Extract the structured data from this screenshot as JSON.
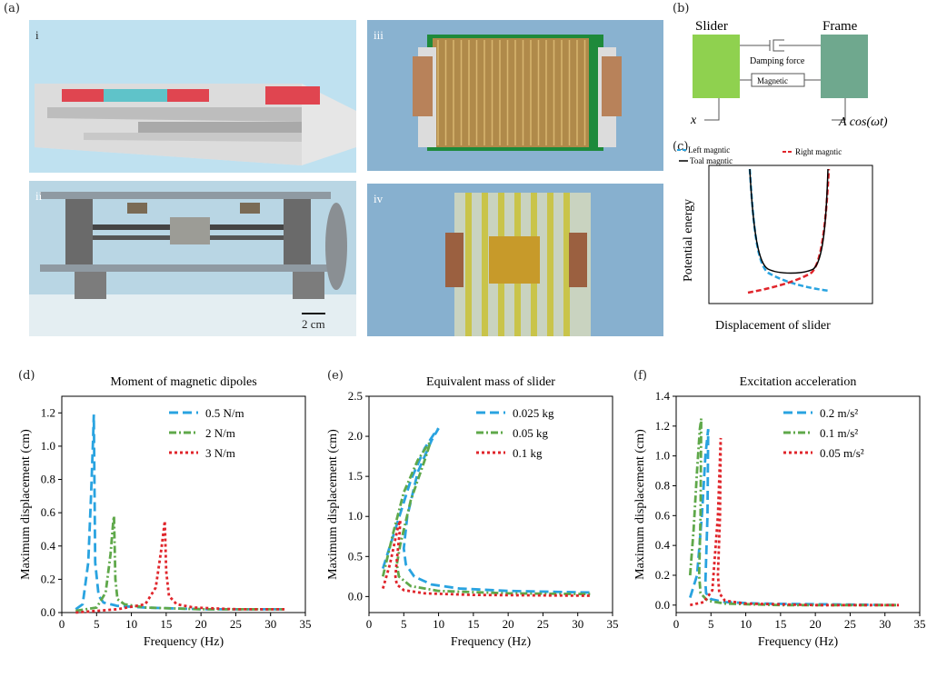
{
  "labels": {
    "a": "(a)",
    "b": "(b)",
    "c": "(c)",
    "d": "(d)",
    "e": "(e)",
    "f": "(f)"
  },
  "panel_a": {
    "sub": [
      "i",
      "ii",
      "iii",
      "iv"
    ],
    "scale_bar": "2 cm"
  },
  "panel_b": {
    "slider": "Slider",
    "frame": "Frame",
    "damping": "Damping force",
    "magnetic": "Magnetic",
    "x": "x",
    "drive": "A cos(ωt)"
  },
  "panel_c": {
    "legend": [
      "Left magntic",
      "Right magntic",
      "Toal magntic"
    ],
    "ylabel": "Potential energy",
    "xlabel": "Displacement of slider"
  },
  "chart_data": [
    {
      "type": "line",
      "title": "Moment of magnetic dipoles",
      "xlabel": "Frequency (Hz)",
      "ylabel": "Maximum displacement (cm)",
      "xlim": [
        0,
        35
      ],
      "ylim": [
        0,
        1.3
      ],
      "xticks": [
        "0",
        "5",
        "10",
        "15",
        "20",
        "25",
        "30",
        "35"
      ],
      "yticks": [
        "0.0",
        "0.2",
        "0.4",
        "0.6",
        "0.8",
        "1.0",
        "1.2"
      ],
      "series": [
        {
          "name": "0.5 N/m",
          "color": "#29a3e0",
          "dash": "dash",
          "x": [
            2,
            3,
            3.8,
            4.2,
            4.5,
            4.6,
            4.8,
            5.3,
            6,
            8,
            12,
            20,
            32
          ],
          "y": [
            0.02,
            0.05,
            0.3,
            0.7,
            1.05,
            1.19,
            0.3,
            0.1,
            0.06,
            0.04,
            0.03,
            0.02,
            0.02
          ]
        },
        {
          "name": "2 N/m",
          "color": "#5fa84a",
          "dash": "dashdot",
          "x": [
            2,
            5,
            6.3,
            7,
            7.4,
            7.5,
            7.7,
            8,
            9,
            12,
            20,
            32
          ],
          "y": [
            0.01,
            0.03,
            0.12,
            0.35,
            0.55,
            0.58,
            0.2,
            0.08,
            0.05,
            0.03,
            0.02,
            0.02
          ]
        },
        {
          "name": "3 N/m",
          "color": "#e0252b",
          "dash": "dot",
          "x": [
            2,
            8,
            12,
            13.5,
            14.3,
            14.8,
            15,
            15.4,
            16.5,
            19,
            25,
            32
          ],
          "y": [
            0.0,
            0.02,
            0.05,
            0.15,
            0.38,
            0.55,
            0.25,
            0.1,
            0.05,
            0.03,
            0.02,
            0.02
          ]
        }
      ]
    },
    {
      "type": "line",
      "title": "Equivalent mass of slider",
      "xlabel": "Frequency (Hz)",
      "ylabel": "Maximum displacement (cm)",
      "xlim": [
        0,
        35
      ],
      "ylim": [
        -0.2,
        2.5
      ],
      "xticks": [
        "0",
        "5",
        "10",
        "15",
        "20",
        "25",
        "30",
        "35"
      ],
      "yticks": [
        "0.0",
        "0.5",
        "1.0",
        "1.5",
        "2.0",
        "2.5"
      ],
      "series": [
        {
          "name": "0.025 kg",
          "color": "#29a3e0",
          "dash": "dash",
          "x": [
            2,
            4,
            6,
            8,
            9.5,
            10,
            9,
            7,
            5.5,
            5,
            5.3,
            6.5,
            9,
            13,
            20,
            32
          ],
          "y": [
            0.35,
            0.9,
            1.45,
            1.85,
            2.05,
            2.1,
            1.95,
            1.55,
            1.0,
            0.6,
            0.4,
            0.25,
            0.15,
            0.1,
            0.07,
            0.05
          ]
        },
        {
          "name": "0.05 kg",
          "color": "#5fa84a",
          "dash": "dashdot",
          "x": [
            2,
            3.5,
            5,
            7,
            8.5,
            8.8,
            8,
            6,
            4.5,
            4,
            4.3,
            6,
            10,
            20,
            32
          ],
          "y": [
            0.25,
            0.8,
            1.3,
            1.7,
            1.9,
            1.92,
            1.7,
            1.2,
            0.65,
            0.4,
            0.25,
            0.13,
            0.07,
            0.04,
            0.03
          ]
        },
        {
          "name": "0.1 kg",
          "color": "#e0252b",
          "dash": "dot",
          "x": [
            2,
            3,
            3.8,
            4.2,
            4.5,
            4.4,
            4,
            3.8,
            4,
            5,
            8,
            15,
            32
          ],
          "y": [
            0.1,
            0.4,
            0.72,
            0.88,
            0.95,
            0.8,
            0.45,
            0.25,
            0.15,
            0.08,
            0.04,
            0.02,
            0.01
          ]
        }
      ]
    },
    {
      "type": "line",
      "title": "Excitation acceleration",
      "xlabel": "Frequency (Hz)",
      "ylabel": "Maximum displacement (cm)",
      "xlim": [
        0,
        35
      ],
      "ylim": [
        -0.05,
        1.4
      ],
      "xticks": [
        "0",
        "5",
        "10",
        "15",
        "20",
        "25",
        "30",
        "35"
      ],
      "yticks": [
        "0.0",
        "0.2",
        "0.4",
        "0.6",
        "0.8",
        "1.0",
        "1.2",
        "1.4"
      ],
      "series": [
        {
          "name": "0.2 m/s²",
          "color": "#29a3e0",
          "dash": "dash",
          "x": [
            2,
            3,
            3.7,
            4.2,
            4.6,
            4.5,
            4.2,
            4.3,
            5,
            7,
            12,
            32
          ],
          "y": [
            0.05,
            0.2,
            0.6,
            1.0,
            1.18,
            0.6,
            0.15,
            0.08,
            0.04,
            0.02,
            0.01,
            0.0
          ]
        },
        {
          "name": "0.1 m/s²",
          "color": "#5fa84a",
          "dash": "dashdot",
          "x": [
            2,
            2.5,
            3,
            3.4,
            3.6,
            3.5,
            3.3,
            3.5,
            4.5,
            7,
            15,
            32
          ],
          "y": [
            0.2,
            0.5,
            0.9,
            1.18,
            1.25,
            0.6,
            0.2,
            0.08,
            0.03,
            0.01,
            0.0,
            0.0
          ]
        },
        {
          "name": "0.05 m/s²",
          "color": "#e0252b",
          "dash": "dot",
          "x": [
            2,
            4,
            5.2,
            6,
            6.4,
            6.3,
            6,
            6.2,
            7,
            10,
            20,
            32
          ],
          "y": [
            0.0,
            0.02,
            0.1,
            0.6,
            1.12,
            0.6,
            0.2,
            0.08,
            0.03,
            0.01,
            0.0,
            0.0
          ]
        }
      ]
    }
  ]
}
